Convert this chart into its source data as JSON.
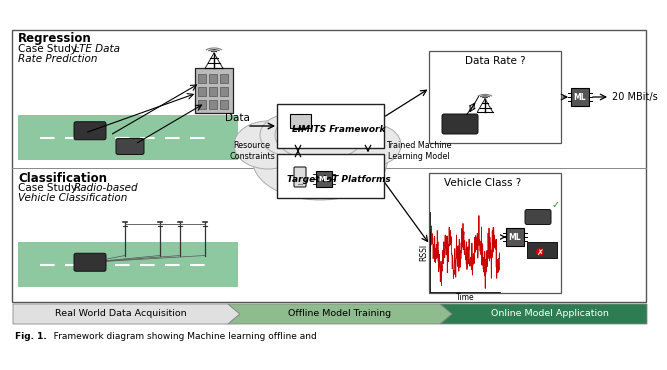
{
  "background_color": "#ffffff",
  "road_color": "#8dc8a0",
  "pipeline_colors": [
    "#e0e0e0",
    "#8fbc8f",
    "#2e7d52"
  ],
  "pipeline_labels": [
    "Real World Data Acquisition",
    "Offline Model Training",
    "Online Model Application"
  ],
  "regression_label": "Regression",
  "classification_label": "Classification",
  "limits_label": "LIMITS Framework",
  "iot_label": "Target IoT Platforms",
  "resource_label": "Resource\nConstraints",
  "trained_label": "Trained Machine\nLearning Model",
  "data_label": "Data",
  "data_rate_label": "Data Rate ?",
  "vehicle_class_label": "Vehicle Class ?",
  "result_label": "20 MBit/s",
  "plot_line_color": "#cc0000",
  "rssi_label": "RSSI",
  "time_label": "Time",
  "fig_caption_bold": "Fig. 1.",
  "fig_caption_rest": "   Framework diagram showing Machine learning offline and"
}
